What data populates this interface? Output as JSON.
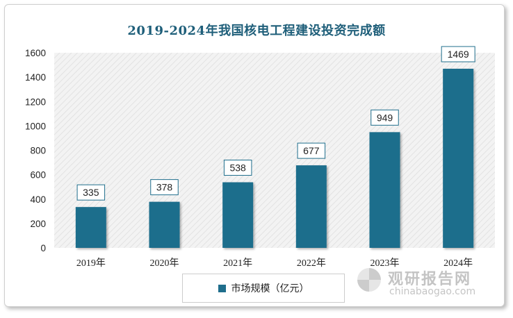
{
  "chart_data": {
    "type": "bar",
    "title": "2019-2024年我国核电工程建设投资完成额",
    "categories": [
      "2019年",
      "2020年",
      "2021年",
      "2022年",
      "2023年",
      "2024年"
    ],
    "series": [
      {
        "name": "市场规模（亿元）",
        "values": [
          335,
          378,
          538,
          677,
          949,
          1469
        ]
      }
    ],
    "ylim": [
      0,
      1600
    ],
    "yticks": [
      0,
      200,
      400,
      600,
      800,
      1000,
      1200,
      1400,
      1600
    ],
    "grid": false,
    "legend": "bottom-center",
    "bar_color": "#1f6e8c",
    "plot_background": "hatched light gray"
  },
  "watermark": {
    "cn_text": "观研报告网",
    "en_text": "chinabaogao.com"
  }
}
